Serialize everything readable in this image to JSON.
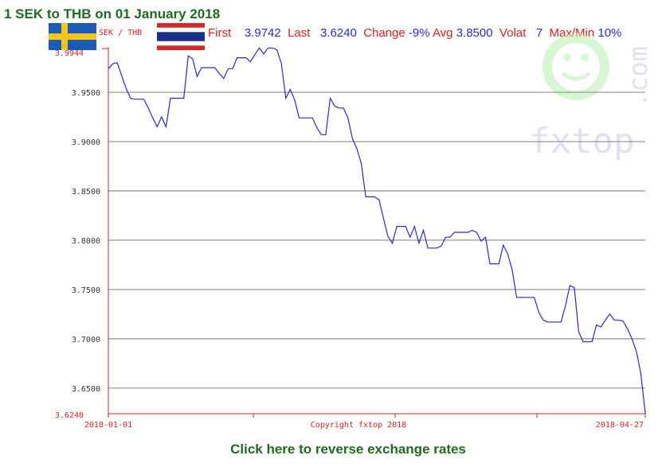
{
  "page_title": "1 SEK to THB on 01 January 2018",
  "pair_label": "SEK / THB",
  "stats": {
    "first_label": "First",
    "first_value": "3.9742",
    "last_label": "Last",
    "last_value": "3.6240",
    "change_label": "Change",
    "change_value": "-9%",
    "avg_label": "Avg",
    "avg_value": "3.8500",
    "volat_label": "Volat",
    "volat_value": "7",
    "maxmin_label": "Max/Min",
    "maxmin_value": "10%"
  },
  "watermark": {
    "text": "fxtop",
    "suffix": ".com"
  },
  "reverse_link": "Click here to reverse exchange rates",
  "colors": {
    "title_green": "#1f6b1f",
    "axis_red": "#e02020",
    "line_blue": "#2a2ad0",
    "grid_gray": "#999999"
  },
  "chart_data": {
    "type": "line",
    "title": "",
    "xlabel": "",
    "ylabel": "",
    "x_start_label": "2018-01-01",
    "x_end_label": "2018-04-27",
    "copyright": "Copyright fxtop 2018",
    "ylim": [
      3.624,
      3.9944
    ],
    "y_top_label": "3.9944",
    "y_bottom_label": "3.6240",
    "y_ticks": [
      3.95,
      3.9,
      3.85,
      3.8,
      3.75,
      3.7,
      3.65
    ],
    "y_tick_labels": [
      "3.9500",
      "3.9000",
      "3.8500",
      "3.8000",
      "3.7500",
      "3.7000",
      "3.6500"
    ],
    "grid": true,
    "series": [
      {
        "values": [
          3.974,
          3.979,
          3.98,
          3.967,
          3.954,
          3.944,
          3.943,
          3.943,
          3.943,
          3.934,
          3.924,
          3.915,
          3.925,
          3.915,
          3.944,
          3.944,
          3.944,
          3.944,
          3.987,
          3.984,
          3.966,
          3.975,
          3.975,
          3.975,
          3.975,
          3.969,
          3.964,
          3.974,
          3.974,
          3.985,
          3.985,
          3.985,
          3.981,
          3.988,
          3.995,
          3.989,
          3.995,
          3.995,
          3.993,
          3.979,
          3.944,
          3.953,
          3.942,
          3.924,
          3.924,
          3.924,
          3.924,
          3.914,
          3.907,
          3.907,
          3.944,
          3.936,
          3.934,
          3.934,
          3.924,
          3.903,
          3.893,
          3.878,
          3.844,
          3.844,
          3.844,
          3.841,
          3.822,
          3.804,
          3.797,
          3.814,
          3.814,
          3.814,
          3.803,
          3.814,
          3.797,
          3.81,
          3.792,
          3.792,
          3.792,
          3.794,
          3.803,
          3.803,
          3.808,
          3.808,
          3.808,
          3.808,
          3.81,
          3.808,
          3.799,
          3.803,
          3.776,
          3.776,
          3.776,
          3.795,
          3.786,
          3.77,
          3.742,
          3.742,
          3.742,
          3.742,
          3.742,
          3.727,
          3.719,
          3.717,
          3.717,
          3.717,
          3.717,
          3.733,
          3.754,
          3.752,
          3.707,
          3.697,
          3.697,
          3.697,
          3.714,
          3.712,
          3.719,
          3.725,
          3.719,
          3.719,
          3.718,
          3.71,
          3.7,
          3.687,
          3.665,
          3.624
        ]
      }
    ]
  }
}
